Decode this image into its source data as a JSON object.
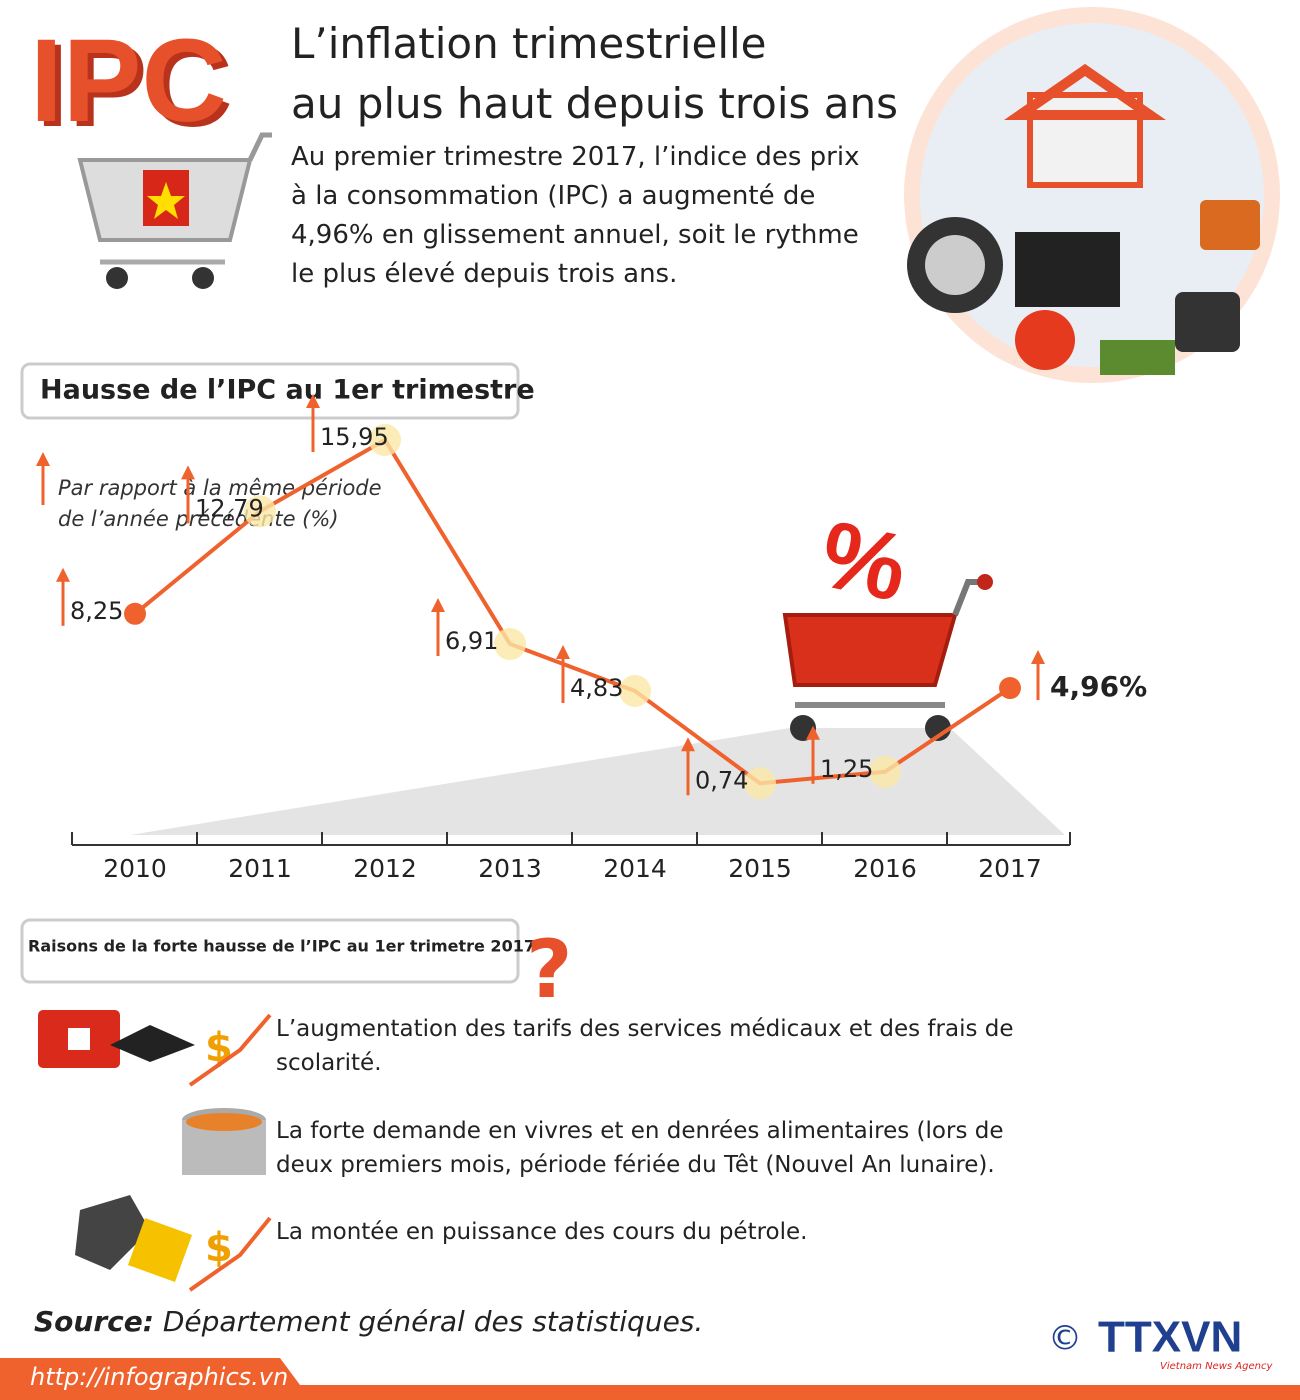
{
  "logo": "IPC",
  "header": {
    "title_lines": [
      "L’inflation trimestrielle",
      "au plus haut depuis trois ans"
    ],
    "intro": "Au premier trimestre 2017, l’indice des prix à la consommation (IPC) a augmenté de 4,96% en glissement annuel, soit le rythme le plus élevé depuis trois ans."
  },
  "chart_data": {
    "type": "line",
    "title": "Hausse de l’IPC au 1er trimestre",
    "subtitle_lines": [
      "Par rapport à la même période",
      "de l’année précédente (%)"
    ],
    "categories": [
      "2010",
      "2011",
      "2012",
      "2013",
      "2014",
      "2015",
      "2016",
      "2017"
    ],
    "values": [
      8.25,
      12.79,
      15.95,
      6.91,
      4.83,
      0.74,
      1.25,
      4.96
    ],
    "value_labels": [
      "8,25",
      "12,79",
      "15,95",
      "6,91",
      "4,83",
      "0,74",
      "1,25",
      "4,96%"
    ],
    "color": "#f0622d"
  },
  "reasons": {
    "title": "Raisons de la forte hausse de l’IPC au 1er trimetre 2017",
    "items": [
      "L’augmentation des tarifs des services médicaux et des frais de scolarité.",
      "La forte demande en vivres et en denrées alimentaires (lors de deux premiers mois, période fériée du Têt (Nouvel An lunaire).",
      "La montée en puissance des cours du pétrole."
    ]
  },
  "source": {
    "label": "Source:",
    "text": "Département général des statistiques."
  },
  "footer": {
    "url": "http://infographics.vn",
    "copyright": "©",
    "agency": "TTXVN",
    "agency_sub": "Vietnam News Agency"
  }
}
